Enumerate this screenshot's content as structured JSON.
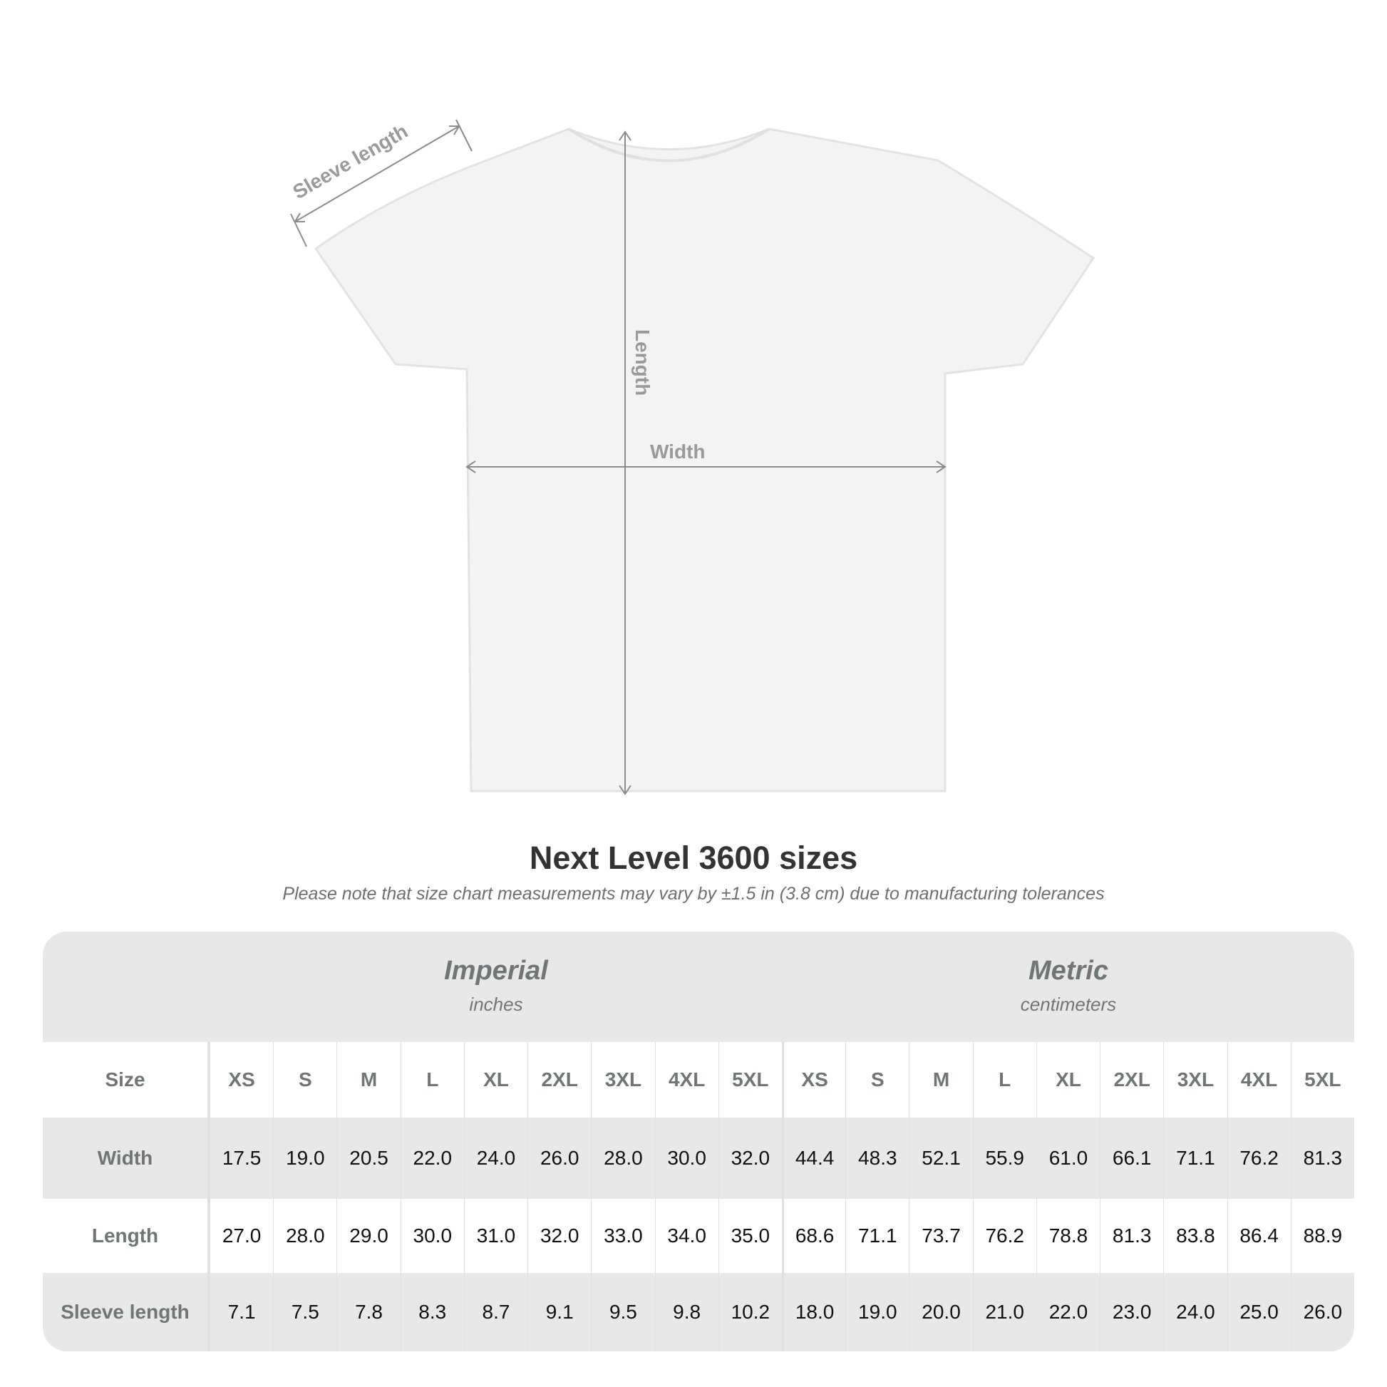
{
  "diagram": {
    "labels": {
      "sleeve": "Sleeve length",
      "length": "Length",
      "width": "Width"
    },
    "colors": {
      "shirt": "#f3f3f3",
      "shirt_outline": "#e4e4e4",
      "measure_line": "#8c8c8c"
    }
  },
  "title": "Next Level 3600 sizes",
  "subtitle": "Please note that size chart measurements may vary by ±1.5 in (3.8 cm) due to manufacturing tolerances",
  "table": {
    "imperial": {
      "name": "Imperial",
      "unit": "inches"
    },
    "metric": {
      "name": "Metric",
      "unit": "centimeters"
    },
    "size_label": "Size",
    "sizes": [
      "XS",
      "S",
      "M",
      "L",
      "XL",
      "2XL",
      "3XL",
      "4XL",
      "5XL"
    ],
    "rows": [
      {
        "label": "Width",
        "imperial": [
          "17.5",
          "19.0",
          "20.5",
          "22.0",
          "24.0",
          "26.0",
          "28.0",
          "30.0",
          "32.0"
        ],
        "metric": [
          "44.4",
          "48.3",
          "52.1",
          "55.9",
          "61.0",
          "66.1",
          "71.1",
          "76.2",
          "81.3"
        ]
      },
      {
        "label": "Length",
        "imperial": [
          "27.0",
          "28.0",
          "29.0",
          "30.0",
          "31.0",
          "32.0",
          "33.0",
          "34.0",
          "35.0"
        ],
        "metric": [
          "68.6",
          "71.1",
          "73.7",
          "76.2",
          "78.8",
          "81.3",
          "83.8",
          "86.4",
          "88.9"
        ]
      },
      {
        "label": "Sleeve length",
        "imperial": [
          "7.1",
          "7.5",
          "7.8",
          "8.3",
          "8.7",
          "9.1",
          "9.5",
          "9.8",
          "10.2"
        ],
        "metric": [
          "18.0",
          "19.0",
          "20.0",
          "21.0",
          "22.0",
          "23.0",
          "24.0",
          "25.0",
          "26.0"
        ]
      }
    ]
  }
}
